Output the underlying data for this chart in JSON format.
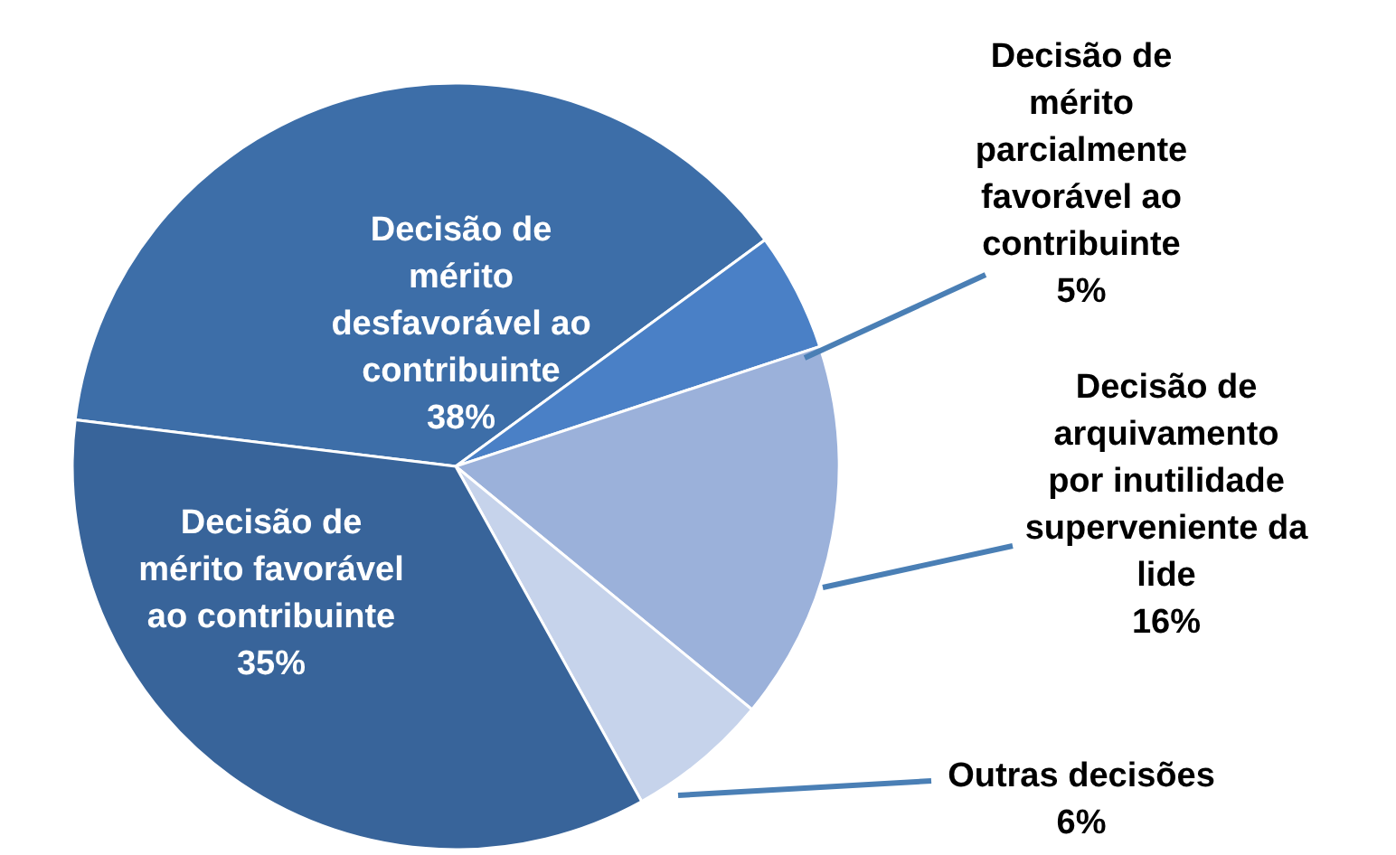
{
  "chart_data": {
    "type": "pie",
    "categories": [
      "Decisão de\nmérito\ndesfavorável ao\ncontribuinte",
      "Decisão de\nmérito\nparcialmente\nfavorável ao\ncontribuinte",
      "Decisão de\narquivamento\npor inutilidade\nsuperveniente da\nlide",
      "Outras decisões",
      "Decisão de\nmérito favorável\nao contribuinte"
    ],
    "values": [
      38,
      5,
      16,
      6,
      35
    ],
    "value_labels": [
      "38%",
      "5%",
      "16%",
      "6%",
      "35%"
    ],
    "colors": [
      "#3d6ea8",
      "#4a80c6",
      "#9bb1da",
      "#c6d3eb",
      "#38649a"
    ]
  }
}
